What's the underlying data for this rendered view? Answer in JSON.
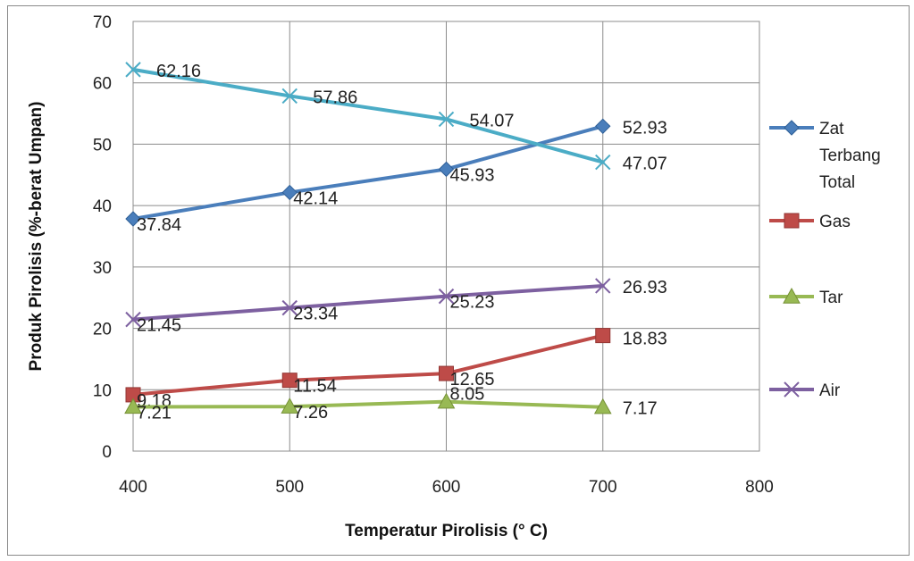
{
  "chart_data": {
    "type": "line",
    "title": "",
    "xlabel": "Temperatur Pirolisis  (° C)",
    "ylabel": "Produk Pirolisis (%-berat Umpan)",
    "xlim": [
      400,
      800
    ],
    "ylim": [
      0,
      70
    ],
    "x_ticks": [
      "400",
      "500",
      "600",
      "700",
      "800"
    ],
    "y_ticks": [
      "0",
      "10",
      "20",
      "30",
      "40",
      "50",
      "60",
      "70"
    ],
    "grid": true,
    "legend_position": "right",
    "x": [
      400,
      500,
      600,
      700
    ],
    "series": [
      {
        "name": "Zat Terbang Total",
        "legend_lines": [
          "Zat",
          "Terbang",
          "Total"
        ],
        "marker": "diamond",
        "color": "#4a7ebb",
        "values": [
          37.84,
          42.14,
          45.93,
          52.93
        ],
        "labels": [
          "37.84",
          "42.14",
          "45.93",
          "52.93"
        ]
      },
      {
        "name": "Gas",
        "legend_lines": [
          "Gas"
        ],
        "marker": "square",
        "color": "#be4b48",
        "values": [
          9.18,
          11.54,
          12.65,
          18.83
        ],
        "labels": [
          "9.18",
          "11.54",
          "12.65",
          "18.83"
        ]
      },
      {
        "name": "Tar",
        "legend_lines": [
          "Tar"
        ],
        "marker": "triangle",
        "color": "#98b954",
        "values": [
          7.21,
          7.26,
          8.05,
          7.17
        ],
        "labels": [
          "7.21",
          "7.26",
          "8.05",
          "7.17"
        ]
      },
      {
        "name": "Air",
        "legend_lines": [
          "Air"
        ],
        "marker": "x",
        "color": "#7d60a0",
        "values": [
          21.45,
          23.34,
          25.23,
          26.93
        ],
        "labels": [
          "21.45",
          "23.34",
          "25.23",
          "26.93"
        ]
      },
      {
        "name": "",
        "legend_lines": [],
        "marker": "x",
        "color": "#4bacc6",
        "values": [
          62.16,
          57.86,
          54.07,
          47.07
        ],
        "labels": [
          "62.16",
          "57.86",
          "54.07",
          "47.07"
        ]
      }
    ]
  }
}
